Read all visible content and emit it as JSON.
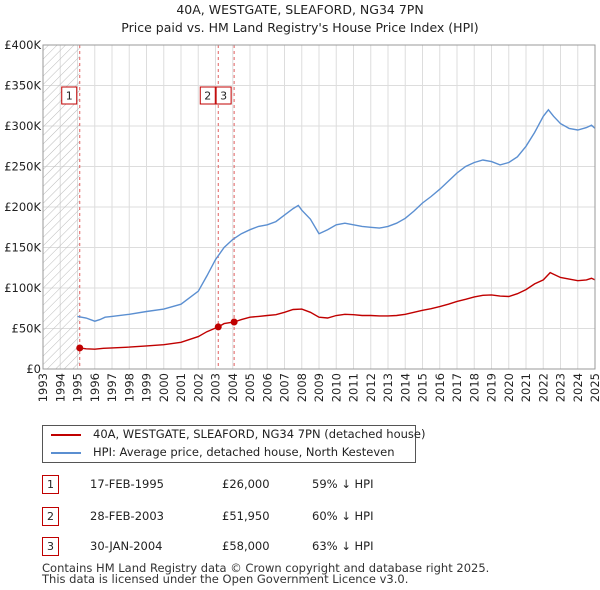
{
  "title": "40A, WESTGATE, SLEAFORD, NG34 7PN",
  "subtitle": "Price paid vs. HM Land Registry's House Price Index (HPI)",
  "colors": {
    "price": "#c00000",
    "hpi": "#5b8fd1",
    "grid": "#dddddd",
    "hatch": "#bbbbbb",
    "vline": "#e06060"
  },
  "chart_data": {
    "type": "line",
    "xlim": [
      1993,
      2025
    ],
    "ylim": [
      0,
      400000
    ],
    "x_ticks": [
      1993,
      1994,
      1995,
      1996,
      1997,
      1998,
      1999,
      2000,
      2001,
      2002,
      2003,
      2004,
      2005,
      2006,
      2007,
      2008,
      2009,
      2010,
      2011,
      2012,
      2013,
      2014,
      2015,
      2016,
      2017,
      2018,
      2019,
      2020,
      2021,
      2022,
      2023,
      2024,
      2025
    ],
    "x_tick_labels": [
      "1993",
      "1994",
      "1995",
      "1996",
      "1997",
      "1998",
      "1999",
      "2000",
      "2001",
      "2002",
      "2003",
      "2004",
      "2005",
      "2006",
      "2007",
      "2008",
      "2009",
      "2010",
      "2011",
      "2012",
      "2013",
      "2014",
      "2015",
      "2016",
      "2017",
      "2018",
      "2019",
      "2020",
      "2021",
      "2022",
      "2023",
      "2024",
      "2025"
    ],
    "y_ticks": [
      0,
      50000,
      100000,
      150000,
      200000,
      250000,
      300000,
      350000,
      400000
    ],
    "y_tick_labels": [
      "£0",
      "£50K",
      "£100K",
      "£150K",
      "£200K",
      "£250K",
      "£300K",
      "£350K",
      "£400K"
    ],
    "series": [
      {
        "name": "40A, WESTGATE, SLEAFORD, NG34 7PN (detached house)",
        "points": [
          [
            1995.13,
            26000
          ],
          [
            1995.5,
            25000
          ],
          [
            1996,
            24500
          ],
          [
            1996.5,
            25500
          ],
          [
            1997,
            26000
          ],
          [
            1998,
            27000
          ],
          [
            1999,
            28500
          ],
          [
            2000,
            30000
          ],
          [
            2001,
            33000
          ],
          [
            2002,
            40000
          ],
          [
            2002.5,
            46000
          ],
          [
            2003.16,
            51950
          ],
          [
            2003.5,
            56000
          ],
          [
            2004.08,
            58000
          ],
          [
            2004.5,
            61000
          ],
          [
            2005,
            64000
          ],
          [
            2005.5,
            65000
          ],
          [
            2006,
            66000
          ],
          [
            2006.5,
            67000
          ],
          [
            2007,
            70000
          ],
          [
            2007.5,
            73500
          ],
          [
            2008,
            74000
          ],
          [
            2008.5,
            70000
          ],
          [
            2009,
            64000
          ],
          [
            2009.5,
            63000
          ],
          [
            2010,
            66000
          ],
          [
            2010.5,
            67500
          ],
          [
            2011,
            67000
          ],
          [
            2011.5,
            66000
          ],
          [
            2012,
            66000
          ],
          [
            2012.5,
            65500
          ],
          [
            2013,
            65500
          ],
          [
            2013.5,
            66000
          ],
          [
            2014,
            67500
          ],
          [
            2014.5,
            70000
          ],
          [
            2015,
            72500
          ],
          [
            2015.5,
            74500
          ],
          [
            2016,
            77000
          ],
          [
            2016.5,
            80000
          ],
          [
            2017,
            83500
          ],
          [
            2017.5,
            86000
          ],
          [
            2018,
            89000
          ],
          [
            2018.5,
            91000
          ],
          [
            2019,
            91500
          ],
          [
            2019.5,
            90000
          ],
          [
            2020,
            89500
          ],
          [
            2020.5,
            93000
          ],
          [
            2021,
            98000
          ],
          [
            2021.5,
            105000
          ],
          [
            2022,
            110000
          ],
          [
            2022.4,
            119000
          ],
          [
            2022.6,
            117000
          ],
          [
            2023,
            113000
          ],
          [
            2023.5,
            111000
          ],
          [
            2024,
            109000
          ],
          [
            2024.5,
            110000
          ],
          [
            2024.8,
            112000
          ],
          [
            2025,
            110000
          ]
        ]
      },
      {
        "name": "HPI: Average price, detached house, North Kesteven",
        "points": [
          [
            1995,
            65000
          ],
          [
            1995.5,
            63000
          ],
          [
            1996,
            59000
          ],
          [
            1996.3,
            61000
          ],
          [
            1996.6,
            64000
          ],
          [
            1997,
            65000
          ],
          [
            1998,
            67500
          ],
          [
            1999,
            71000
          ],
          [
            2000,
            74000
          ],
          [
            2001,
            80000
          ],
          [
            2002,
            96000
          ],
          [
            2002.5,
            115000
          ],
          [
            2003,
            135000
          ],
          [
            2003.5,
            150000
          ],
          [
            2004,
            160000
          ],
          [
            2004.5,
            167000
          ],
          [
            2005,
            172000
          ],
          [
            2005.5,
            176000
          ],
          [
            2006,
            178000
          ],
          [
            2006.5,
            182000
          ],
          [
            2007,
            190000
          ],
          [
            2007.5,
            198000
          ],
          [
            2007.8,
            202000
          ],
          [
            2008,
            196000
          ],
          [
            2008.5,
            185000
          ],
          [
            2009,
            167000
          ],
          [
            2009.5,
            172000
          ],
          [
            2010,
            178000
          ],
          [
            2010.5,
            180000
          ],
          [
            2011,
            178000
          ],
          [
            2011.5,
            176000
          ],
          [
            2012,
            175000
          ],
          [
            2012.5,
            174000
          ],
          [
            2013,
            176000
          ],
          [
            2013.5,
            180000
          ],
          [
            2014,
            186000
          ],
          [
            2014.5,
            195000
          ],
          [
            2015,
            205000
          ],
          [
            2015.5,
            213000
          ],
          [
            2016,
            222000
          ],
          [
            2016.5,
            232000
          ],
          [
            2017,
            242000
          ],
          [
            2017.5,
            250000
          ],
          [
            2018,
            255000
          ],
          [
            2018.5,
            258000
          ],
          [
            2019,
            256000
          ],
          [
            2019.5,
            252000
          ],
          [
            2020,
            255000
          ],
          [
            2020.5,
            262000
          ],
          [
            2021,
            275000
          ],
          [
            2021.5,
            292000
          ],
          [
            2022,
            312000
          ],
          [
            2022.3,
            320000
          ],
          [
            2022.6,
            312000
          ],
          [
            2023,
            303000
          ],
          [
            2023.5,
            297000
          ],
          [
            2024,
            295000
          ],
          [
            2024.5,
            298000
          ],
          [
            2024.8,
            301000
          ],
          [
            2025,
            297000
          ]
        ]
      }
    ],
    "sales": [
      {
        "id": "1",
        "date": "17-FEB-1995",
        "x": 1995.13,
        "price_value": 26000,
        "price": "£26,000",
        "hpi_diff": "59% ↓ HPI"
      },
      {
        "id": "2",
        "date": "28-FEB-2003",
        "x": 2003.16,
        "price_value": 51950,
        "price": "£51,950",
        "hpi_diff": "60% ↓ HPI"
      },
      {
        "id": "3",
        "date": "30-JAN-2004",
        "x": 2004.08,
        "price_value": 58000,
        "price": "£58,000",
        "hpi_diff": "63% ↓ HPI"
      }
    ],
    "hatch_until": 1995.13
  },
  "legend": {
    "price_label": "40A, WESTGATE, SLEAFORD, NG34 7PN (detached house)",
    "hpi_label": "HPI: Average price, detached house, North Kesteven"
  },
  "footer": {
    "line1": "Contains HM Land Registry data © Crown copyright and database right 2025.",
    "line2": "This data is licensed under the Open Government Licence v3.0."
  }
}
